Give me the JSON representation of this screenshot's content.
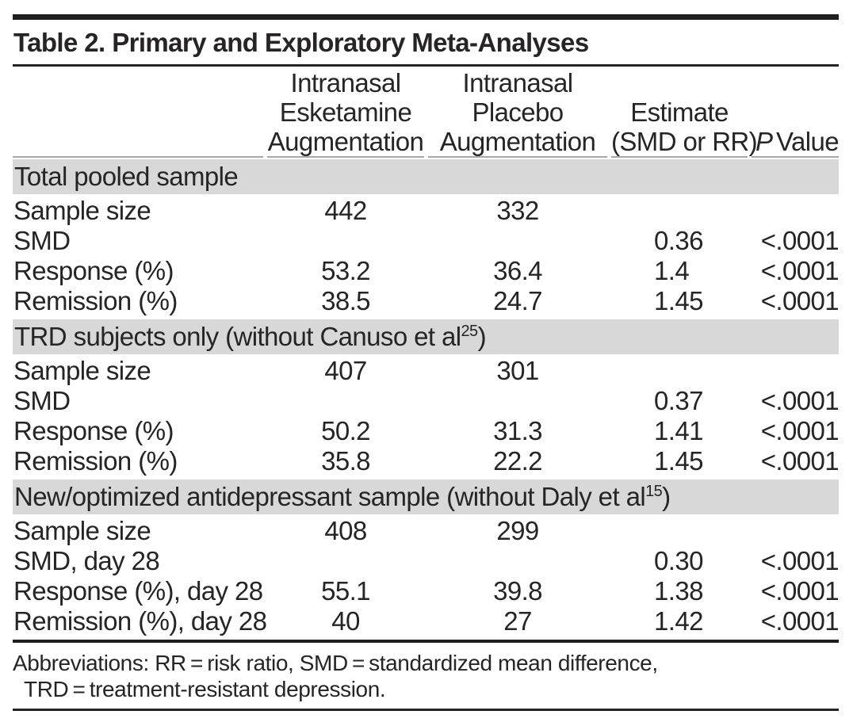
{
  "title": "Table 2. Primary and Exploratory Meta-Analyses",
  "header": {
    "col1_lines": [
      "Intranasal",
      "Esketamine",
      "Augmentation"
    ],
    "col2_lines": [
      "Intranasal",
      "Placebo",
      "Augmentation"
    ],
    "col3_lines": [
      "Estimate",
      "(SMD or RR)"
    ],
    "p_label_italic": "P",
    "p_label_rest": "Value"
  },
  "sections": [
    {
      "header_pre": "Total pooled sample",
      "header_sup": "",
      "header_post": "",
      "rows": [
        {
          "label": "Sample size",
          "esketamine": "442",
          "placebo": "332",
          "estimate": "",
          "p_value": ""
        },
        {
          "label": "SMD",
          "esketamine": "",
          "placebo": "",
          "estimate": "0.36",
          "p_value": "<.0001"
        },
        {
          "label": "Response (%)",
          "esketamine": "53.2",
          "placebo": "36.4",
          "estimate": "1.4",
          "p_value": "<.0001"
        },
        {
          "label": "Remission (%)",
          "esketamine": "38.5",
          "placebo": "24.7",
          "estimate": "1.45",
          "p_value": "<.0001"
        }
      ]
    },
    {
      "header_pre": "TRD subjects only (without Canuso et al",
      "header_sup": "25",
      "header_post": ")",
      "rows": [
        {
          "label": "Sample size",
          "esketamine": "407",
          "placebo": "301",
          "estimate": "",
          "p_value": ""
        },
        {
          "label": "SMD",
          "esketamine": "",
          "placebo": "",
          "estimate": "0.37",
          "p_value": "<.0001"
        },
        {
          "label": "Response (%)",
          "esketamine": "50.2",
          "placebo": "31.3",
          "estimate": "1.41",
          "p_value": "<.0001"
        },
        {
          "label": "Remission (%)",
          "esketamine": "35.8",
          "placebo": "22.2",
          "estimate": "1.45",
          "p_value": "<.0001"
        }
      ]
    },
    {
      "header_pre": "New/optimized antidepressant sample (without Daly et al",
      "header_sup": "15",
      "header_post": ")",
      "rows": [
        {
          "label": "Sample size",
          "esketamine": "408",
          "placebo": "299",
          "estimate": "",
          "p_value": ""
        },
        {
          "label": "SMD, day 28",
          "esketamine": "",
          "placebo": "",
          "estimate": "0.30",
          "p_value": "<.0001"
        },
        {
          "label": "Response (%), day 28",
          "esketamine": "55.1",
          "placebo": "39.8",
          "estimate": "1.38",
          "p_value": "<.0001"
        },
        {
          "label": "Remission (%), day 28",
          "esketamine": "40",
          "placebo": "27",
          "estimate": "1.42",
          "p_value": "<.0001"
        }
      ]
    }
  ],
  "footnote": {
    "line1": "Abbreviations: RR = risk ratio, SMD = standardized mean difference,",
    "line2": "TRD = treatment-resistant depression."
  },
  "colors": {
    "section_bar": "#d8d8d8",
    "text": "#262424",
    "rule_black": "#1f1f1f",
    "rule_thin": "#a8a8a8"
  }
}
